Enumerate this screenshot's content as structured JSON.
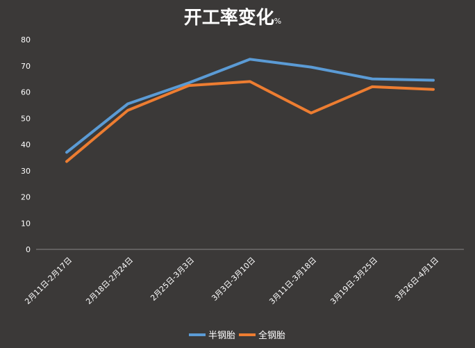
{
  "chart_data": {
    "type": "line",
    "title": "开工率变化",
    "title_unit": "%",
    "categories": [
      "2月11日-2月17日",
      "2月18日-2月24日",
      "2月25日-3月3日",
      "3月3日-3月10日",
      "3月11日-3月18日",
      "3月19日-3月25日",
      "3月26日-4月1日"
    ],
    "series": [
      {
        "name": "半钢胎",
        "color": "#5b9bd5",
        "values": [
          37,
          55.5,
          63.5,
          72.5,
          69.5,
          65,
          64.5
        ]
      },
      {
        "name": "全钢胎",
        "color": "#ed7d31",
        "values": [
          33.5,
          53,
          62.5,
          64,
          52,
          62,
          61
        ]
      }
    ],
    "ylim": [
      0,
      80
    ],
    "yticks": [
      0,
      10,
      20,
      30,
      40,
      50,
      60,
      70,
      80
    ],
    "grid": false,
    "legend": "bottom",
    "background": "#3b3938"
  }
}
